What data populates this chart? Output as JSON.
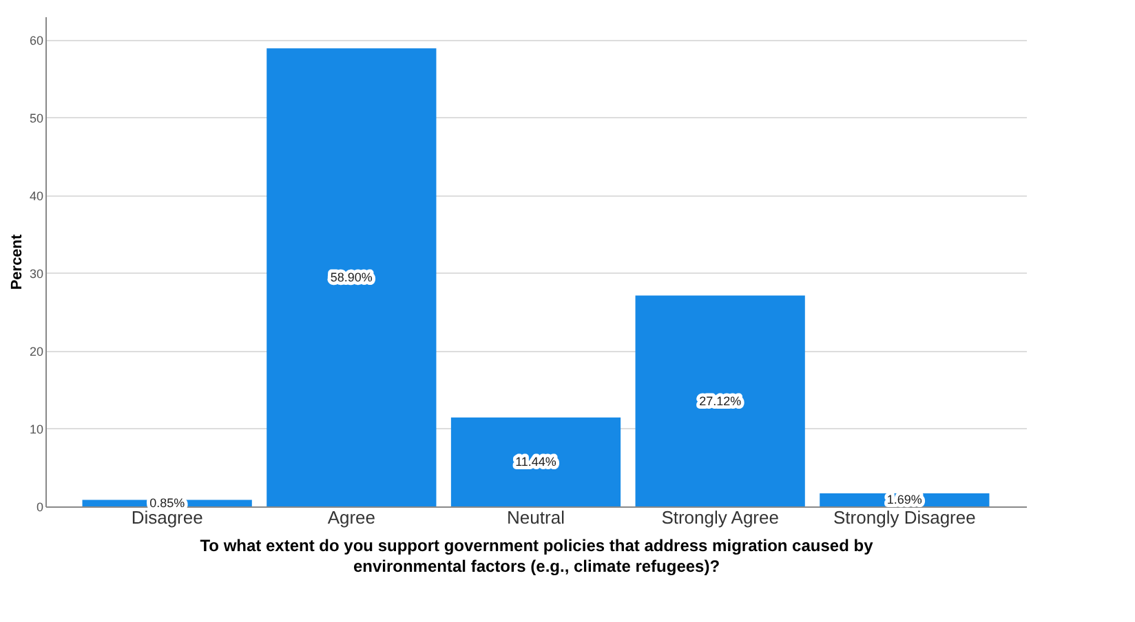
{
  "chart_data": {
    "type": "bar",
    "categories": [
      "Disagree",
      "Agree",
      "Neutral",
      "Strongly Agree",
      "Strongly Disagree"
    ],
    "values": [
      0.85,
      58.9,
      11.44,
      27.12,
      1.69
    ],
    "value_labels": [
      "0.85%",
      "58.90%",
      "11.44%",
      "27.12%",
      "1.69%"
    ],
    "color": "#1689e6",
    "ylabel": "Percent",
    "xlabel": "To what extent do you support government policies that address migration caused by\nenvironmental factors (e.g., climate refugees)?",
    "ylim": [
      0,
      63
    ],
    "yticks": [
      0,
      10,
      20,
      30,
      40,
      50,
      60
    ],
    "grid": "y"
  }
}
